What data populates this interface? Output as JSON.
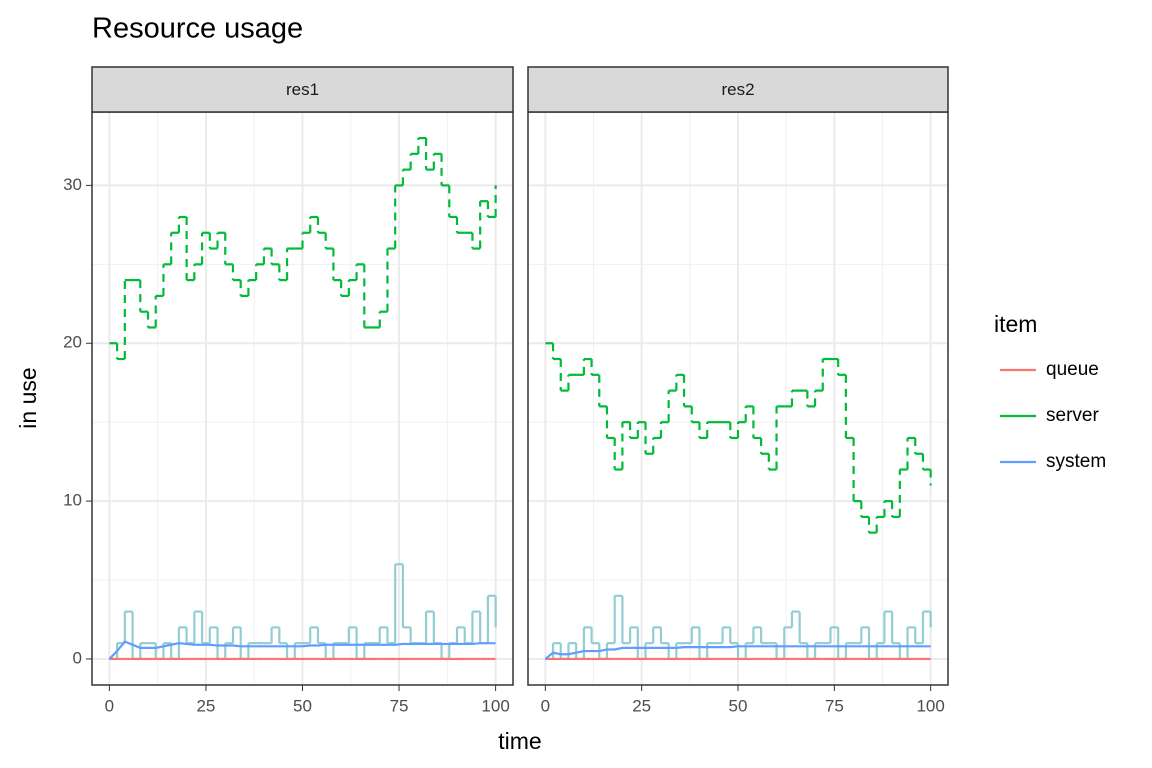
{
  "title": "Resource usage",
  "x_label": "time",
  "y_label": "in use",
  "legend_title": "item",
  "chart_data": [
    {
      "type": "line",
      "facet": "res1",
      "x": [
        0,
        2,
        4,
        6,
        8,
        10,
        12,
        14,
        16,
        18,
        20,
        22,
        24,
        26,
        28,
        30,
        32,
        34,
        36,
        38,
        40,
        42,
        44,
        46,
        48,
        50,
        52,
        54,
        56,
        58,
        60,
        62,
        64,
        66,
        68,
        70,
        72,
        74,
        76,
        78,
        80,
        82,
        84,
        86,
        88,
        90,
        92,
        94,
        96,
        98,
        100
      ],
      "xlim": [
        -4.5,
        104.5
      ],
      "xticks": [
        0,
        25,
        50,
        75,
        100
      ],
      "x_minor_grid": [
        12.5,
        37.5,
        62.5,
        87.5
      ],
      "ylim": [
        -1.65,
        34.65
      ],
      "yticks": [
        0,
        10,
        20,
        30
      ],
      "y_minor_grid": [
        5,
        15,
        25
      ],
      "grid": true,
      "series": [
        {
          "color": "#86c8cf",
          "step": true,
          "values": [
            0,
            1,
            3,
            0,
            1,
            1,
            0,
            1,
            0,
            2,
            1,
            3,
            1,
            2,
            0,
            1,
            2,
            0,
            1,
            1,
            1,
            2,
            1,
            0,
            1,
            1,
            2,
            1,
            0,
            1,
            1,
            2,
            0,
            1,
            1,
            2,
            1,
            6,
            2,
            1,
            1,
            3,
            1,
            0,
            1,
            2,
            1,
            3,
            1,
            4,
            2
          ]
        },
        {
          "name": "queue",
          "color": "#F8766D",
          "step": true,
          "values": [
            0,
            0,
            0,
            0,
            0,
            0,
            0,
            0,
            0,
            0,
            0,
            0,
            0,
            0,
            0,
            0,
            0,
            0,
            0,
            0,
            0,
            0,
            0,
            0,
            0,
            0,
            0,
            0,
            0,
            0,
            0,
            0,
            0,
            0,
            0,
            0,
            0,
            0,
            0,
            0,
            0,
            0,
            0,
            0,
            0,
            0,
            0,
            0,
            0,
            0,
            0
          ]
        },
        {
          "name": "server",
          "color": "#00BA38",
          "step": true,
          "dashed": true,
          "values": [
            20,
            19,
            24,
            24,
            22,
            21,
            23,
            25,
            27,
            28,
            24,
            25,
            27,
            26,
            27,
            25,
            24,
            23,
            24,
            25,
            26,
            25,
            24,
            26,
            26,
            27,
            28,
            27,
            26,
            24,
            23,
            24,
            25,
            21,
            21,
            22,
            26,
            30,
            31,
            32,
            33,
            31,
            32,
            30,
            28,
            27,
            27,
            26,
            29,
            28,
            30
          ]
        },
        {
          "name": "system",
          "color": "#619CFF",
          "values": [
            0,
            0.5,
            1.1,
            0.9,
            0.7,
            0.7,
            0.7,
            0.8,
            0.9,
            1,
            0.95,
            0.9,
            0.9,
            0.9,
            0.85,
            0.85,
            0.85,
            0.8,
            0.8,
            0.8,
            0.8,
            0.8,
            0.8,
            0.8,
            0.8,
            0.8,
            0.85,
            0.85,
            0.9,
            0.9,
            0.9,
            0.9,
            0.9,
            0.9,
            0.9,
            0.9,
            0.9,
            0.9,
            0.95,
            0.95,
            0.95,
            0.95,
            0.95,
            0.95,
            0.95,
            0.95,
            0.95,
            0.95,
            1,
            1,
            1
          ]
        }
      ]
    },
    {
      "type": "line",
      "facet": "res2",
      "x": [
        0,
        2,
        4,
        6,
        8,
        10,
        12,
        14,
        16,
        18,
        20,
        22,
        24,
        26,
        28,
        30,
        32,
        34,
        36,
        38,
        40,
        42,
        44,
        46,
        48,
        50,
        52,
        54,
        56,
        58,
        60,
        62,
        64,
        66,
        68,
        70,
        72,
        74,
        76,
        78,
        80,
        82,
        84,
        86,
        88,
        90,
        92,
        94,
        96,
        98,
        100
      ],
      "xlim": [
        -4.5,
        104.5
      ],
      "xticks": [
        0,
        25,
        50,
        75,
        100
      ],
      "x_minor_grid": [
        12.5,
        37.5,
        62.5,
        87.5
      ],
      "ylim": [
        -1.65,
        34.65
      ],
      "yticks": [
        0,
        10,
        20,
        30
      ],
      "y_minor_grid": [
        5,
        15,
        25
      ],
      "grid": true,
      "series": [
        {
          "color": "#86c8cf",
          "step": true,
          "values": [
            0,
            1,
            0,
            1,
            0,
            2,
            1,
            0,
            1,
            4,
            1,
            2,
            0,
            1,
            2,
            1,
            0,
            1,
            1,
            2,
            0,
            1,
            1,
            2,
            1,
            0,
            1,
            2,
            1,
            1,
            0,
            2,
            3,
            1,
            0,
            1,
            1,
            2,
            0,
            1,
            1,
            2,
            0,
            1,
            3,
            1,
            0,
            2,
            1,
            3,
            2
          ]
        },
        {
          "name": "queue",
          "color": "#F8766D",
          "step": true,
          "values": [
            0,
            0,
            0,
            0,
            0,
            0,
            0,
            0,
            0,
            0,
            0,
            0,
            0,
            0,
            0,
            0,
            0,
            0,
            0,
            0,
            0,
            0,
            0,
            0,
            0,
            0,
            0,
            0,
            0,
            0,
            0,
            0,
            0,
            0,
            0,
            0,
            0,
            0,
            0,
            0,
            0,
            0,
            0,
            0,
            0,
            0,
            0,
            0,
            0,
            0,
            0
          ]
        },
        {
          "name": "server",
          "color": "#00BA38",
          "step": true,
          "dashed": true,
          "values": [
            20,
            19,
            17,
            18,
            18,
            19,
            18,
            16,
            14,
            12,
            15,
            14,
            15,
            13,
            14,
            15,
            17,
            18,
            16,
            15,
            14,
            15,
            15,
            15,
            14,
            15,
            16,
            14,
            13,
            12,
            16,
            16,
            17,
            17,
            16,
            17,
            19,
            19,
            18,
            14,
            10,
            9,
            8,
            9,
            10,
            9,
            12,
            14,
            13,
            12,
            11
          ]
        },
        {
          "name": "system",
          "color": "#619CFF",
          "values": [
            0,
            0.4,
            0.3,
            0.3,
            0.4,
            0.5,
            0.5,
            0.5,
            0.6,
            0.6,
            0.7,
            0.7,
            0.7,
            0.7,
            0.7,
            0.7,
            0.7,
            0.7,
            0.75,
            0.75,
            0.75,
            0.75,
            0.75,
            0.75,
            0.75,
            0.8,
            0.8,
            0.8,
            0.8,
            0.8,
            0.8,
            0.8,
            0.8,
            0.8,
            0.8,
            0.8,
            0.8,
            0.8,
            0.8,
            0.8,
            0.8,
            0.8,
            0.8,
            0.8,
            0.8,
            0.8,
            0.8,
            0.8,
            0.8,
            0.8,
            0.8
          ]
        }
      ]
    }
  ]
}
